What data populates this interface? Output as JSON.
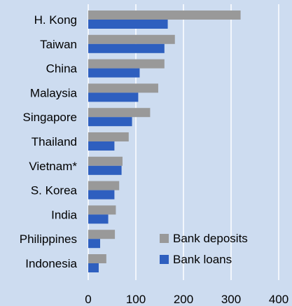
{
  "chart_data": {
    "type": "bar",
    "orientation": "horizontal",
    "categories": [
      "H. Kong",
      "Taiwan",
      "China",
      "Malaysia",
      "Singapore",
      "Thailand",
      "Vietnam*",
      "S. Korea",
      "India",
      "Philippines",
      "Indonesia"
    ],
    "series": [
      {
        "name": "Bank deposits",
        "color": "#999999",
        "values": [
          320,
          182,
          160,
          147,
          130,
          85,
          72,
          65,
          58,
          56,
          38
        ]
      },
      {
        "name": "Bank loans",
        "color": "#2e5fbf",
        "values": [
          167,
          160,
          108,
          105,
          92,
          55,
          70,
          55,
          42,
          25,
          22
        ]
      }
    ],
    "xlim": [
      0,
      400
    ],
    "xticks": [
      0,
      100,
      200,
      300,
      400
    ],
    "grid": "vertical",
    "legend_position": "bottom-right",
    "background": "#cddcf0"
  }
}
